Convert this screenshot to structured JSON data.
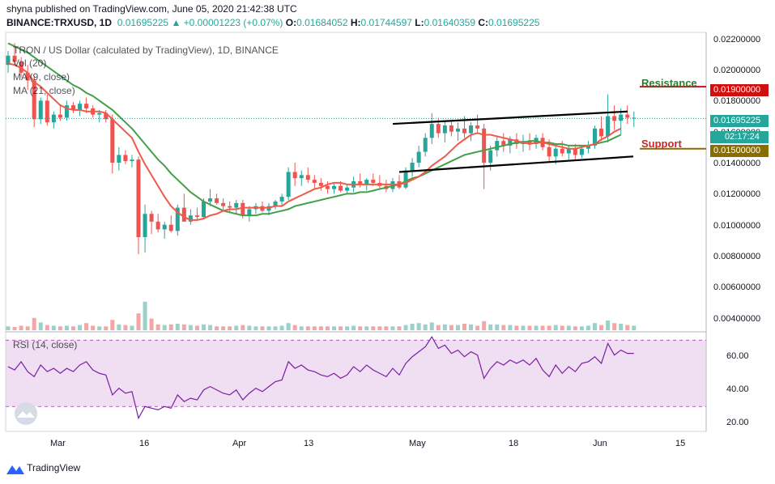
{
  "header": {
    "line1": "shyna published on TradingView.com, June 05, 2020 21:42:38 UTC",
    "symbol": "BINANCE:TRXUSD, 1D",
    "last": "0.01695225",
    "change": "▲ +0.00001223 (+0.07%)",
    "o_label": "O:",
    "o": "0.01684052",
    "h_label": "H:",
    "h": "0.01744597",
    "l_label": "L:",
    "l": "0.01640359",
    "c_label": "C:",
    "c": "0.01695225"
  },
  "legend": {
    "title": "TRON / US Dollar (calculated by TradingView), 1D, BINANCE",
    "vol": "Vol (20)",
    "ma9": "MA (9, close)",
    "ma21": "MA (21, close)",
    "rsi": "RSI (14, close)"
  },
  "price_tags": {
    "resistance_value": "0.01900000",
    "last_value": "0.01695225",
    "countdown": "02:17:24",
    "support_value": "0.01500000"
  },
  "annotations": {
    "resistance": "Resistance",
    "support": "Support"
  },
  "footer": {
    "brand": "TradingView"
  },
  "colors": {
    "up": "#26a69a",
    "down": "#ef5350",
    "ma9": "#f05a47",
    "ma21": "#43a047",
    "resistance": "#d10f0f",
    "support": "#8a6d00",
    "rsi_line": "#7b1fa2",
    "rsi_band": "#e1bee7",
    "annotation_green": "#2e7d32",
    "annotation_red": "#c62828"
  },
  "chart_data": {
    "type": "candlestick",
    "y_axis_ticks": [
      "0.02200000",
      "0.02000000",
      "0.01800000",
      "0.01600000",
      "0.01400000",
      "0.01200000",
      "0.01000000",
      "0.00800000",
      "0.00600000",
      "0.00400000"
    ],
    "ylim": [
      0.0033,
      0.0225
    ],
    "x_axis_ticks": [
      "Mar",
      "16",
      "Apr",
      "13",
      "May",
      "18",
      "Jun",
      "15"
    ],
    "rsi_ticks": [
      "60.00",
      "40.00",
      "20.00"
    ],
    "rsi_levels": [
      70,
      30
    ],
    "ohlc": [
      [
        0.0204,
        0.0213,
        0.0199,
        0.021
      ],
      [
        0.021,
        0.0218,
        0.0204,
        0.0206
      ],
      [
        0.0206,
        0.0209,
        0.0196,
        0.0199
      ],
      [
        0.0199,
        0.0204,
        0.0188,
        0.0194
      ],
      [
        0.0194,
        0.0197,
        0.0164,
        0.0169
      ],
      [
        0.0169,
        0.0183,
        0.0166,
        0.0181
      ],
      [
        0.0181,
        0.0185,
        0.0165,
        0.0167
      ],
      [
        0.0167,
        0.0174,
        0.0163,
        0.0172
      ],
      [
        0.0172,
        0.0178,
        0.0168,
        0.017
      ],
      [
        0.017,
        0.0181,
        0.0168,
        0.0178
      ],
      [
        0.0178,
        0.018,
        0.0173,
        0.0175
      ],
      [
        0.0175,
        0.0181,
        0.0171,
        0.0179
      ],
      [
        0.0179,
        0.0183,
        0.0173,
        0.0176
      ],
      [
        0.0176,
        0.0178,
        0.017,
        0.0172
      ],
      [
        0.0172,
        0.0175,
        0.0167,
        0.0173
      ],
      [
        0.0173,
        0.0175,
        0.0167,
        0.0169
      ],
      [
        0.0169,
        0.0172,
        0.0134,
        0.0141
      ],
      [
        0.0141,
        0.0151,
        0.0136,
        0.0146
      ],
      [
        0.0146,
        0.0149,
        0.014,
        0.0142
      ],
      [
        0.0142,
        0.0146,
        0.0138,
        0.0143
      ],
      [
        0.0143,
        0.0145,
        0.0082,
        0.0093
      ],
      [
        0.0093,
        0.0114,
        0.0083,
        0.0108
      ],
      [
        0.0108,
        0.011,
        0.0095,
        0.0103
      ],
      [
        0.0103,
        0.0108,
        0.0096,
        0.0098
      ],
      [
        0.0098,
        0.0103,
        0.0092,
        0.0101
      ],
      [
        0.0101,
        0.0107,
        0.0096,
        0.0097
      ],
      [
        0.0097,
        0.0114,
        0.0094,
        0.0112
      ],
      [
        0.0112,
        0.0121,
        0.0103,
        0.0103
      ],
      [
        0.0103,
        0.0111,
        0.0101,
        0.0107
      ],
      [
        0.0107,
        0.0112,
        0.0104,
        0.0106
      ],
      [
        0.0106,
        0.0118,
        0.0105,
        0.0116
      ],
      [
        0.0116,
        0.0124,
        0.0113,
        0.0118
      ],
      [
        0.0118,
        0.0121,
        0.0114,
        0.0115
      ],
      [
        0.0115,
        0.0118,
        0.011,
        0.0113
      ],
      [
        0.0113,
        0.0116,
        0.0109,
        0.0112
      ],
      [
        0.0112,
        0.0117,
        0.0108,
        0.0115
      ],
      [
        0.0115,
        0.0117,
        0.0105,
        0.0107
      ],
      [
        0.0107,
        0.0113,
        0.0103,
        0.0111
      ],
      [
        0.0111,
        0.0115,
        0.0108,
        0.0113
      ],
      [
        0.0113,
        0.0116,
        0.0109,
        0.011
      ],
      [
        0.011,
        0.0115,
        0.0107,
        0.0113
      ],
      [
        0.0113,
        0.0117,
        0.0111,
        0.0116
      ],
      [
        0.0116,
        0.0121,
        0.0113,
        0.0119
      ],
      [
        0.0119,
        0.0138,
        0.0117,
        0.0135
      ],
      [
        0.0135,
        0.0141,
        0.0126,
        0.0131
      ],
      [
        0.0131,
        0.0136,
        0.0126,
        0.0133
      ],
      [
        0.0133,
        0.0138,
        0.0128,
        0.013
      ],
      [
        0.013,
        0.0133,
        0.0124,
        0.0128
      ],
      [
        0.0128,
        0.0131,
        0.0123,
        0.0126
      ],
      [
        0.0126,
        0.0129,
        0.0121,
        0.0124
      ],
      [
        0.0124,
        0.0128,
        0.0121,
        0.0126
      ],
      [
        0.0126,
        0.0129,
        0.0122,
        0.0123
      ],
      [
        0.0123,
        0.0127,
        0.0121,
        0.0125
      ],
      [
        0.0125,
        0.0132,
        0.0122,
        0.0129
      ],
      [
        0.0129,
        0.0134,
        0.0125,
        0.0127
      ],
      [
        0.0127,
        0.0131,
        0.0123,
        0.013
      ],
      [
        0.013,
        0.0134,
        0.0126,
        0.0128
      ],
      [
        0.0128,
        0.0133,
        0.0124,
        0.0126
      ],
      [
        0.0126,
        0.013,
        0.0122,
        0.0124
      ],
      [
        0.0124,
        0.0131,
        0.0122,
        0.0129
      ],
      [
        0.0129,
        0.0133,
        0.0124,
        0.0125
      ],
      [
        0.0125,
        0.0138,
        0.0124,
        0.0136
      ],
      [
        0.0136,
        0.0144,
        0.0132,
        0.0141
      ],
      [
        0.0141,
        0.0152,
        0.0138,
        0.0148
      ],
      [
        0.0148,
        0.016,
        0.0145,
        0.0157
      ],
      [
        0.0157,
        0.0173,
        0.0153,
        0.0166
      ],
      [
        0.0166,
        0.017,
        0.0157,
        0.016
      ],
      [
        0.016,
        0.0168,
        0.0154,
        0.0165
      ],
      [
        0.0165,
        0.0168,
        0.0158,
        0.0161
      ],
      [
        0.0161,
        0.0167,
        0.0155,
        0.0163
      ],
      [
        0.0163,
        0.0171,
        0.0157,
        0.016
      ],
      [
        0.016,
        0.0167,
        0.0155,
        0.0165
      ],
      [
        0.0165,
        0.0172,
        0.016,
        0.0163
      ],
      [
        0.0163,
        0.0166,
        0.0124,
        0.0141
      ],
      [
        0.0141,
        0.0152,
        0.0136,
        0.0149
      ],
      [
        0.0149,
        0.0158,
        0.0145,
        0.0155
      ],
      [
        0.0155,
        0.016,
        0.0148,
        0.0152
      ],
      [
        0.0152,
        0.0158,
        0.0147,
        0.0156
      ],
      [
        0.0156,
        0.016,
        0.015,
        0.0153
      ],
      [
        0.0153,
        0.0159,
        0.0148,
        0.0155
      ],
      [
        0.0155,
        0.016,
        0.0149,
        0.0153
      ],
      [
        0.0153,
        0.0159,
        0.015,
        0.0157
      ],
      [
        0.0157,
        0.016,
        0.0149,
        0.0151
      ],
      [
        0.0151,
        0.0156,
        0.0141,
        0.0145
      ],
      [
        0.0145,
        0.0153,
        0.014,
        0.015
      ],
      [
        0.015,
        0.0155,
        0.0145,
        0.0147
      ],
      [
        0.0147,
        0.0152,
        0.0143,
        0.015
      ],
      [
        0.015,
        0.0153,
        0.0143,
        0.0146
      ],
      [
        0.0146,
        0.0152,
        0.0144,
        0.015
      ],
      [
        0.015,
        0.0155,
        0.0147,
        0.0152
      ],
      [
        0.0152,
        0.0165,
        0.015,
        0.0163
      ],
      [
        0.0163,
        0.0171,
        0.0155,
        0.0158
      ],
      [
        0.0158,
        0.0185,
        0.0154,
        0.0171
      ],
      [
        0.0171,
        0.0178,
        0.0162,
        0.0168
      ],
      [
        0.0168,
        0.0176,
        0.0159,
        0.0172
      ],
      [
        0.0172,
        0.0178,
        0.0166,
        0.017
      ],
      [
        0.017,
        0.0174,
        0.0164,
        0.017
      ]
    ],
    "ma9": [
      0.0205,
      0.0204,
      0.0202,
      0.0199,
      0.0193,
      0.019,
      0.0186,
      0.0182,
      0.0178,
      0.0176,
      0.0175,
      0.0175,
      0.0174,
      0.0174,
      0.0174,
      0.0173,
      0.0169,
      0.0165,
      0.0161,
      0.0157,
      0.0148,
      0.014,
      0.0133,
      0.0126,
      0.0119,
      0.0113,
      0.0109,
      0.0106,
      0.0104,
      0.0104,
      0.0105,
      0.0107,
      0.0108,
      0.011,
      0.0111,
      0.0111,
      0.0112,
      0.0112,
      0.0112,
      0.0112,
      0.0112,
      0.0113,
      0.0113,
      0.0116,
      0.0118,
      0.012,
      0.0122,
      0.0124,
      0.0125,
      0.0127,
      0.0128,
      0.0128,
      0.0127,
      0.0127,
      0.0127,
      0.0127,
      0.0127,
      0.0127,
      0.0127,
      0.0127,
      0.0127,
      0.0128,
      0.013,
      0.0132,
      0.0135,
      0.0139,
      0.0142,
      0.0145,
      0.0149,
      0.0153,
      0.0156,
      0.0159,
      0.016,
      0.0159,
      0.0159,
      0.0158,
      0.0157,
      0.0156,
      0.0155,
      0.0154,
      0.0153,
      0.0154,
      0.0154,
      0.0153,
      0.0152,
      0.0151,
      0.015,
      0.015,
      0.0151,
      0.0152,
      0.0153,
      0.0156,
      0.0158,
      0.0161,
      0.0163
    ],
    "ma21": [
      0.0218,
      0.0216,
      0.0214,
      0.0212,
      0.0209,
      0.0206,
      0.0203,
      0.02,
      0.0197,
      0.0194,
      0.0191,
      0.0189,
      0.0186,
      0.0184,
      0.0181,
      0.0178,
      0.0175,
      0.0171,
      0.0167,
      0.0163,
      0.0158,
      0.0153,
      0.0148,
      0.0143,
      0.0139,
      0.0134,
      0.013,
      0.0126,
      0.0122,
      0.0119,
      0.0116,
      0.0114,
      0.0112,
      0.011,
      0.0109,
      0.0108,
      0.0107,
      0.0107,
      0.0107,
      0.0108,
      0.0108,
      0.0109,
      0.011,
      0.0111,
      0.0113,
      0.0114,
      0.0115,
      0.0116,
      0.0117,
      0.0118,
      0.0119,
      0.012,
      0.0121,
      0.0121,
      0.0122,
      0.0122,
      0.0123,
      0.0124,
      0.0125,
      0.0126,
      0.0127,
      0.0129,
      0.0131,
      0.0132,
      0.0134,
      0.0136,
      0.0138,
      0.014,
      0.0142,
      0.0144,
      0.0146,
      0.0147,
      0.0148,
      0.0149,
      0.015,
      0.0151,
      0.0152,
      0.0153,
      0.0154,
      0.0154,
      0.0155,
      0.0155,
      0.0154,
      0.0154,
      0.0153,
      0.0153,
      0.0152,
      0.0152,
      0.0152,
      0.0152,
      0.0153,
      0.0154,
      0.0155,
      0.0157,
      0.0159
    ],
    "volume": [
      0.3,
      0.25,
      0.35,
      0.3,
      0.95,
      0.6,
      0.4,
      0.35,
      0.3,
      0.35,
      0.3,
      0.4,
      0.55,
      0.35,
      0.3,
      0.3,
      0.8,
      0.45,
      0.4,
      0.35,
      1.3,
      2.2,
      0.9,
      0.45,
      0.4,
      0.45,
      0.5,
      0.45,
      0.4,
      0.35,
      0.45,
      0.4,
      0.3,
      0.3,
      0.3,
      0.35,
      0.4,
      0.35,
      0.3,
      0.3,
      0.3,
      0.3,
      0.35,
      0.55,
      0.4,
      0.3,
      0.3,
      0.3,
      0.3,
      0.3,
      0.3,
      0.3,
      0.3,
      0.35,
      0.3,
      0.3,
      0.3,
      0.3,
      0.3,
      0.3,
      0.3,
      0.4,
      0.5,
      0.55,
      0.45,
      0.6,
      0.4,
      0.45,
      0.4,
      0.4,
      0.5,
      0.45,
      0.35,
      0.7,
      0.45,
      0.45,
      0.4,
      0.4,
      0.35,
      0.35,
      0.35,
      0.35,
      0.35,
      0.35,
      0.4,
      0.35,
      0.35,
      0.3,
      0.3,
      0.35,
      0.55,
      0.4,
      0.75,
      0.55,
      0.5,
      0.4,
      0.35
    ],
    "rsi": [
      54,
      52,
      57,
      51,
      48,
      55,
      51,
      53,
      50,
      53,
      51,
      55,
      57,
      52,
      50,
      49,
      37,
      41,
      38,
      39,
      23,
      30,
      29,
      28,
      30,
      29,
      37,
      33,
      35,
      34,
      40,
      42,
      40,
      38,
      37,
      40,
      34,
      38,
      41,
      39,
      42,
      45,
      46,
      57,
      53,
      55,
      52,
      51,
      49,
      48,
      50,
      47,
      49,
      54,
      51,
      55,
      52,
      50,
      48,
      53,
      49,
      56,
      60,
      63,
      66,
      72,
      65,
      67,
      62,
      64,
      60,
      63,
      61,
      47,
      53,
      57,
      55,
      58,
      56,
      58,
      55,
      59,
      52,
      48,
      55,
      50,
      54,
      51,
      56,
      57,
      60,
      56,
      68,
      61,
      64,
      62,
      62
    ],
    "resistance_line": {
      "from": [
        0.0166,
        0.016
      ],
      "to": [
        0.0174,
        0.0174
      ]
    },
    "support_line": {
      "from": [
        0.0135,
        0.0134
      ],
      "to": [
        0.0146,
        0.0145
      ]
    }
  }
}
